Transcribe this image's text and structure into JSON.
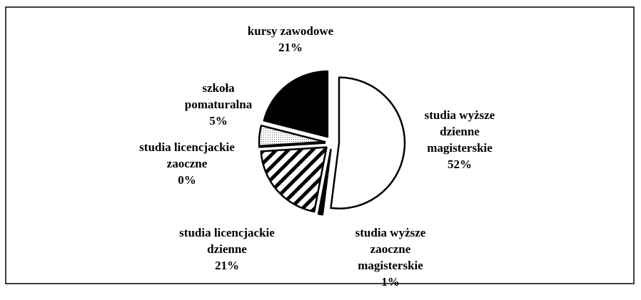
{
  "chart_data": {
    "type": "pie",
    "categories": [
      "studia wyższe dzienne magisterskie",
      "studia wyższe zaoczne magisterskie",
      "studia licencjackie dzienne",
      "studia licencjackie zaoczne",
      "szkoła pomaturalna",
      "kursy zawodowe"
    ],
    "values": [
      52,
      1,
      21,
      0,
      5,
      21
    ],
    "value_labels": [
      "52%",
      "1%",
      "21%",
      "0%",
      "5%",
      "21%"
    ],
    "fills": [
      "white",
      "black",
      "diagonal-hatch",
      "white",
      "dotted",
      "black"
    ]
  }
}
